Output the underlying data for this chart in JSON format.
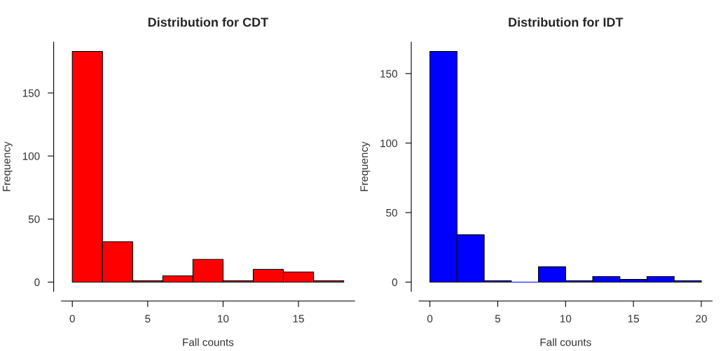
{
  "chart_data": [
    {
      "type": "histogram",
      "title": "Distribution for CDT",
      "xlabel": "Fall counts",
      "ylabel": "Frequency",
      "color": "#ff0000",
      "bins": [
        0,
        2,
        4,
        6,
        8,
        10,
        12,
        14,
        16,
        18
      ],
      "values": [
        183,
        32,
        1,
        5,
        18,
        1,
        10,
        8,
        1
      ],
      "xlim": [
        -0.72,
        18.72
      ],
      "xticks": [
        0,
        5,
        10,
        15
      ],
      "ylim": [
        -7.32,
        190.32
      ],
      "yticks": [
        0,
        50,
        100,
        150
      ],
      "grid": false
    },
    {
      "type": "histogram",
      "title": "Distribution for IDT",
      "xlabel": "Fall counts",
      "ylabel": "Frequency",
      "color": "#0000ff",
      "bins": [
        0,
        2,
        4,
        6,
        8,
        10,
        12,
        14,
        16,
        18,
        20
      ],
      "values": [
        166,
        34,
        1,
        0,
        11,
        1,
        4,
        2,
        4,
        1
      ],
      "xlim": [
        -0.8,
        20.8
      ],
      "xticks": [
        0,
        5,
        10,
        15,
        20
      ],
      "ylim": [
        -6.64,
        172.64
      ],
      "yticks": [
        0,
        50,
        100,
        150
      ],
      "grid": false
    }
  ]
}
